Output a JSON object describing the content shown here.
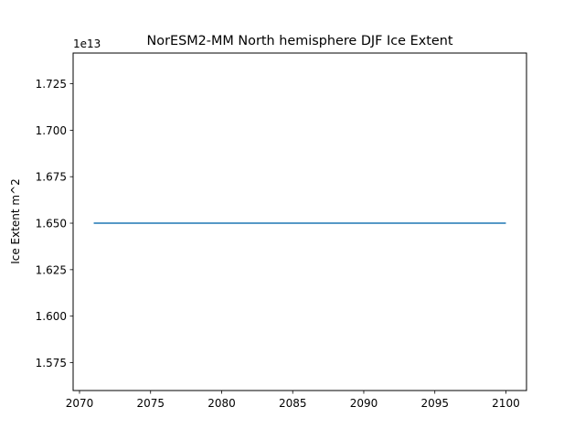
{
  "chart_data": {
    "type": "line",
    "title": "NorESM2-MM North hemisphere DJF Ice Extent",
    "xlabel": "",
    "ylabel": "Ice Extent m^2",
    "y_offset_label": "1e13",
    "xlim": [
      2069.55,
      2101.45
    ],
    "ylim": [
      1.56,
      1.7415
    ],
    "x_ticks": [
      2070,
      2075,
      2080,
      2085,
      2090,
      2095,
      2100
    ],
    "y_ticks": [
      1.575,
      1.6,
      1.625,
      1.65,
      1.675,
      1.7,
      1.725
    ],
    "y_tick_labels": [
      "1.575",
      "1.600",
      "1.625",
      "1.650",
      "1.675",
      "1.700",
      "1.725"
    ],
    "grid": false,
    "series": [
      {
        "color": "#1f77b4",
        "x": [
          2071,
          2072,
          2073,
          2074,
          2075,
          2076,
          2077,
          2078,
          2079,
          2080,
          2081,
          2082,
          2083,
          2084,
          2085,
          2086,
          2087,
          2088,
          2089,
          2090,
          2091,
          2092,
          2093,
          2094,
          2095,
          2096,
          2097,
          2098,
          2099,
          2100
        ],
        "y": [
          1.65,
          1.65,
          1.65,
          1.65,
          1.65,
          1.65,
          1.65,
          1.65,
          1.65,
          1.65,
          1.65,
          1.65,
          1.65,
          1.65,
          1.65,
          1.65,
          1.65,
          1.65,
          1.65,
          1.65,
          1.65,
          1.65,
          1.65,
          1.65,
          1.65,
          1.65,
          1.65,
          1.65,
          1.65,
          1.65
        ]
      }
    ]
  }
}
